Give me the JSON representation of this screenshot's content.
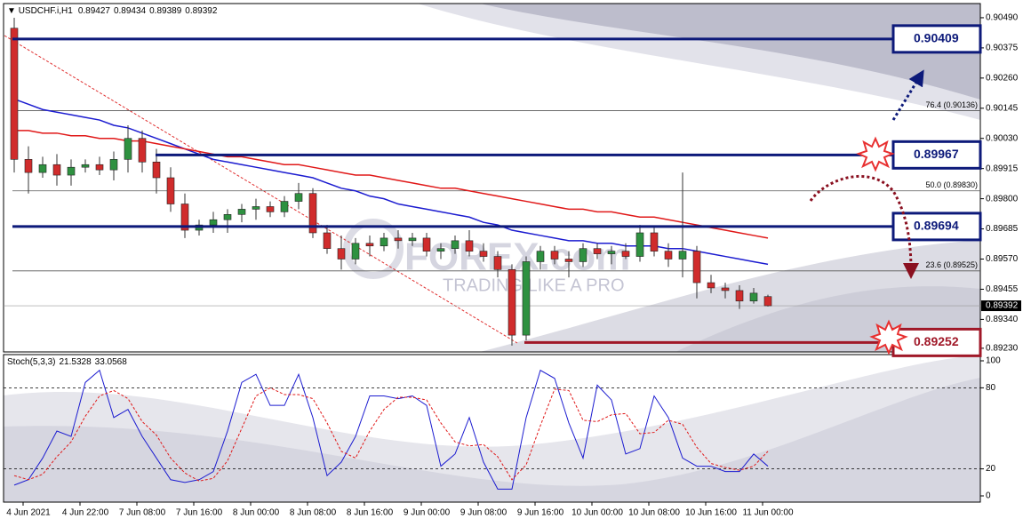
{
  "header": {
    "symbol": "USDCHF.i,H1",
    "ohlc": [
      0.89427,
      0.89434,
      0.89389,
      0.89392
    ]
  },
  "watermark": {
    "brand": "FOREX.com",
    "tagline": "TRADING LIKE A PRO"
  },
  "chart_data": [
    {
      "type": "candlestick",
      "ylim": [
        0.89216,
        0.90544
      ],
      "yticks": [
        {
          "value": 0.9049,
          "label": "0.90490"
        },
        0.90375,
        {
          "value": 0.9026,
          "label": "0.90260"
        },
        0.90145,
        {
          "value": 0.9003,
          "label": "0.90030"
        },
        0.89915,
        {
          "value": 0.898,
          "label": "0.89800"
        },
        0.89685,
        {
          "value": 0.8957,
          "label": "0.89570"
        },
        0.89455,
        {
          "value": 0.8934,
          "label": "0.89340"
        },
        {
          "value": 0.8923,
          "label": "0.89230"
        }
      ],
      "up_color": "#2e9140",
      "down_color": "#d02c2c",
      "ohlc": [
        [
          0.9045,
          0.9049,
          0.899,
          0.8995
        ],
        [
          0.8995,
          0.9,
          0.8982,
          0.899
        ],
        [
          0.899,
          0.8996,
          0.8988,
          0.8993
        ],
        [
          0.8993,
          0.8997,
          0.8985,
          0.8989
        ],
        [
          0.8989,
          0.8995,
          0.8985,
          0.8992
        ],
        [
          0.8992,
          0.8995,
          0.899,
          0.8993
        ],
        [
          0.8993,
          0.8996,
          0.8989,
          0.8991
        ],
        [
          0.8991,
          0.8998,
          0.8987,
          0.8995
        ],
        [
          0.8995,
          0.9008,
          0.899,
          0.9003
        ],
        [
          0.9003,
          0.9006,
          0.899,
          0.8994
        ],
        [
          0.8994,
          0.8999,
          0.8982,
          0.8988
        ],
        [
          0.8988,
          0.8992,
          0.8975,
          0.8978
        ],
        [
          0.8978,
          0.8982,
          0.8965,
          0.8968
        ],
        [
          0.8968,
          0.8972,
          0.8966,
          0.897
        ],
        [
          0.897,
          0.8975,
          0.8967,
          0.8972
        ],
        [
          0.8972,
          0.8976,
          0.8967,
          0.8974
        ],
        [
          0.8974,
          0.8978,
          0.8971,
          0.8976
        ],
        [
          0.8976,
          0.898,
          0.8972,
          0.8977
        ],
        [
          0.8977,
          0.8979,
          0.8973,
          0.8975
        ],
        [
          0.8975,
          0.8981,
          0.8973,
          0.8979
        ],
        [
          0.8979,
          0.8986,
          0.8976,
          0.8982
        ],
        [
          0.8982,
          0.8984,
          0.8965,
          0.8967
        ],
        [
          0.8967,
          0.897,
          0.8959,
          0.8961
        ],
        [
          0.8961,
          0.8966,
          0.8953,
          0.8957
        ],
        [
          0.8957,
          0.8965,
          0.8955,
          0.8963
        ],
        [
          0.8963,
          0.8966,
          0.8958,
          0.8962
        ],
        [
          0.8962,
          0.8967,
          0.896,
          0.8965
        ],
        [
          0.8965,
          0.8968,
          0.8961,
          0.8964
        ],
        [
          0.8964,
          0.8967,
          0.8962,
          0.8965
        ],
        [
          0.8965,
          0.8967,
          0.8958,
          0.896
        ],
        [
          0.896,
          0.8963,
          0.8957,
          0.8961
        ],
        [
          0.8961,
          0.8966,
          0.8959,
          0.8964
        ],
        [
          0.8964,
          0.8968,
          0.8958,
          0.896
        ],
        [
          0.896,
          0.8963,
          0.8956,
          0.8958
        ],
        [
          0.8958,
          0.896,
          0.895,
          0.8953
        ],
        [
          0.8953,
          0.8955,
          0.8924,
          0.8928
        ],
        [
          0.8928,
          0.8958,
          0.8926,
          0.8956
        ],
        [
          0.8956,
          0.8962,
          0.8953,
          0.896
        ],
        [
          0.896,
          0.8962,
          0.8955,
          0.8957
        ],
        [
          0.8957,
          0.896,
          0.895,
          0.8956
        ],
        [
          0.8956,
          0.8963,
          0.8954,
          0.8961
        ],
        [
          0.8961,
          0.8963,
          0.8957,
          0.8959
        ],
        [
          0.8959,
          0.8962,
          0.8955,
          0.896
        ],
        [
          0.896,
          0.8963,
          0.8957,
          0.8958
        ],
        [
          0.8958,
          0.897,
          0.8956,
          0.8967
        ],
        [
          0.8967,
          0.8969,
          0.8958,
          0.896
        ],
        [
          0.896,
          0.8963,
          0.8954,
          0.8957
        ],
        [
          0.8957,
          0.899,
          0.895,
          0.896
        ],
        [
          0.896,
          0.8962,
          0.8942,
          0.8948
        ],
        [
          0.8948,
          0.8951,
          0.8944,
          0.8946
        ],
        [
          0.8946,
          0.8948,
          0.8942,
          0.8945
        ],
        [
          0.8945,
          0.8947,
          0.8938,
          0.8941
        ],
        [
          0.8941,
          0.8946,
          0.894,
          0.8944
        ],
        [
          0.89427,
          0.89434,
          0.89389,
          0.89392
        ]
      ],
      "lines": [
        {
          "color": "#1c1cd0",
          "values": [
            0.9018,
            0.9016,
            0.9014,
            0.9013,
            0.9012,
            0.9011,
            0.901,
            0.9008,
            0.9007,
            0.9005,
            0.9003,
            0.9001,
            0.8999,
            0.8997,
            0.8995,
            0.8994,
            0.8993,
            0.8992,
            0.8991,
            0.899,
            0.8989,
            0.8988,
            0.8986,
            0.8984,
            0.8983,
            0.8981,
            0.898,
            0.8978,
            0.8977,
            0.8976,
            0.8975,
            0.8974,
            0.8973,
            0.8971,
            0.897,
            0.8968,
            0.8967,
            0.8966,
            0.8965,
            0.8964,
            0.8964,
            0.8963,
            0.8963,
            0.8962,
            0.8962,
            0.8962,
            0.8961,
            0.8961,
            0.896,
            0.8959,
            0.8958,
            0.8957,
            0.8956,
            0.8955
          ]
        },
        {
          "color": "#e01818",
          "values": [
            0.9006,
            0.9006,
            0.9005,
            0.9005,
            0.9004,
            0.9004,
            0.9003,
            0.9003,
            0.9002,
            0.9002,
            0.9001,
            0.9,
            0.8999,
            0.8998,
            0.8997,
            0.8996,
            0.8996,
            0.8995,
            0.8994,
            0.8993,
            0.8993,
            0.8992,
            0.8991,
            0.899,
            0.8989,
            0.8989,
            0.8988,
            0.8987,
            0.8986,
            0.8985,
            0.8984,
            0.8984,
            0.8983,
            0.8982,
            0.8981,
            0.898,
            0.8979,
            0.8978,
            0.8977,
            0.8976,
            0.8976,
            0.8975,
            0.8975,
            0.8974,
            0.8973,
            0.8973,
            0.8972,
            0.8971,
            0.897,
            0.8969,
            0.8968,
            0.8967,
            0.8966,
            0.8965
          ]
        }
      ],
      "levels": [
        {
          "value": 0.90409,
          "color": "#0d1a7a"
        },
        {
          "value": 0.89967,
          "color": "#0d1a7a"
        },
        {
          "value": 0.89694,
          "color": "#0d1a7a"
        },
        {
          "value": 0.89252,
          "color": "#a01828"
        }
      ],
      "fib": [
        {
          "value": 0.90136,
          "label": "76.4 (0.90136)"
        },
        {
          "value": 0.8983,
          "label": "50.0 (0.89830)"
        },
        {
          "value": 0.89525,
          "label": "23.6 (0.89525)"
        }
      ],
      "current": 0.89392
    },
    {
      "type": "line",
      "title": "Stoch(5,3,3)",
      "last": [
        21.5328,
        33.0568
      ],
      "ylim": [
        -4.6,
        104.6
      ],
      "yticks": [
        100,
        80,
        20,
        0
      ],
      "categories": [
        null,
        "4 Jun 2021",
        null,
        null,
        null,
        "4 Jun 22:00",
        null,
        null,
        null,
        "7 Jun 08:00",
        null,
        null,
        null,
        "7 Jun 16:00",
        null,
        null,
        null,
        "8 Jun 00:00",
        null,
        null,
        null,
        "8 Jun 08:00",
        null,
        null,
        null,
        "8 Jun 16:00",
        null,
        null,
        null,
        "9 Jun 00:00",
        null,
        null,
        null,
        "9 Jun 08:00",
        null,
        null,
        null,
        "9 Jun 16:00",
        null,
        null,
        null,
        "10 Jun 00:00",
        null,
        null,
        null,
        "10 Jun 08:00",
        null,
        null,
        null,
        "10 Jun 16:00",
        null,
        null,
        null,
        "11 Jun 00:00"
      ],
      "lines": [
        {
          "color": "#1c1cd0",
          "dashed": false,
          "values": [
            8,
            12,
            28,
            48,
            44,
            84,
            93,
            58,
            64,
            44,
            28,
            12,
            10,
            12,
            18,
            48,
            84,
            90,
            67,
            67,
            90,
            58,
            15,
            25,
            44,
            74,
            74,
            72,
            74,
            67,
            22,
            31,
            58,
            25,
            5,
            5,
            58,
            93,
            87,
            54,
            28,
            82,
            71,
            31,
            35,
            74,
            58,
            28,
            22,
            22,
            18,
            18,
            31,
            22
          ]
        },
        {
          "color": "#e01818",
          "dashed": true,
          "values": [
            15,
            12,
            16,
            29,
            40,
            59,
            74,
            78,
            72,
            55,
            45,
            28,
            17,
            11,
            13,
            26,
            50,
            74,
            80,
            75,
            75,
            72,
            54,
            33,
            28,
            48,
            64,
            73,
            73,
            71,
            54,
            40,
            37,
            38,
            29,
            12,
            23,
            52,
            79,
            78,
            56,
            55,
            60,
            61,
            46,
            47,
            56,
            53,
            36,
            24,
            21,
            19,
            22,
            33
          ]
        }
      ]
    }
  ]
}
